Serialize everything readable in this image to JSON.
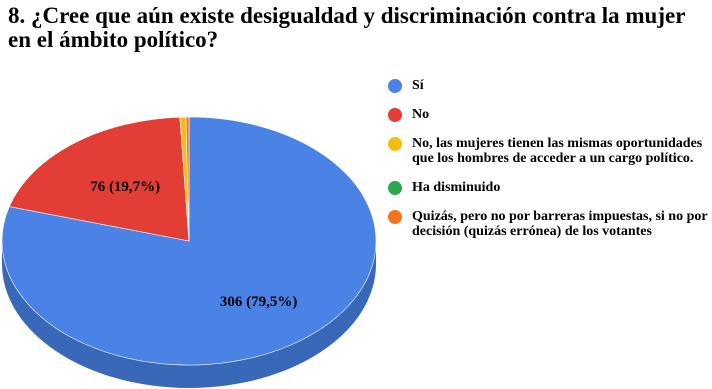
{
  "title": "8. ¿Cree que aún existe desigualdad y discriminación contra la mujer en el ámbito político?",
  "chart_data": {
    "type": "pie",
    "style": "3d",
    "title": "8. ¿Cree que aún existe desigualdad y discriminación contra la mujer en el ámbito político?",
    "legend_position": "right",
    "slices": [
      {
        "label": "Sí",
        "value": 306,
        "data_label": "306 (79,5%)",
        "color": "#4b82e6",
        "side_color": "#3a68b8"
      },
      {
        "label": "No",
        "value": 76,
        "data_label": "76 (19,7%)",
        "color": "#e23e35",
        "side_color": "#b5302a"
      },
      {
        "label": "No, las mujeres tienen las mismas oportunidades que los hombres de acceder a un cargo político.",
        "value": 2,
        "data_label": "",
        "color": "#f5bc14",
        "side_color": "#c49610"
      },
      {
        "label": "Ha disminuido",
        "value": 0,
        "data_label": "",
        "color": "#2ea84f",
        "side_color": "#238040"
      },
      {
        "label": "Quizás, pero no por barreras impuestas, si no por decisión (quizás errónea) de los votantes",
        "value": 1,
        "data_label": "",
        "color": "#f5731e",
        "side_color": "#c45c18"
      }
    ]
  }
}
